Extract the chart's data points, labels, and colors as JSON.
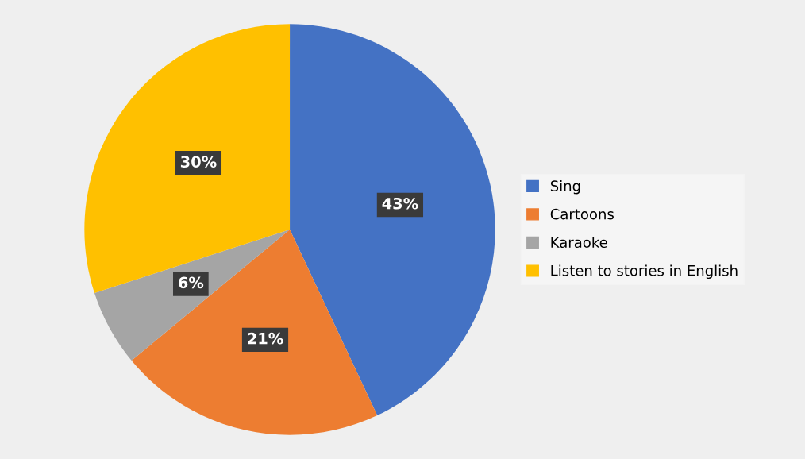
{
  "chart_data": {
    "type": "pie",
    "categories": [
      "Sing",
      "Cartoons",
      "Karaoke",
      "Listen to stories in English"
    ],
    "values": [
      43,
      21,
      6,
      30
    ],
    "colors": [
      "#4472c4",
      "#ed7d31",
      "#a5a5a5",
      "#ffc000"
    ],
    "value_labels": [
      "43%",
      "21%",
      "6%",
      "30%"
    ],
    "legend": "right"
  }
}
